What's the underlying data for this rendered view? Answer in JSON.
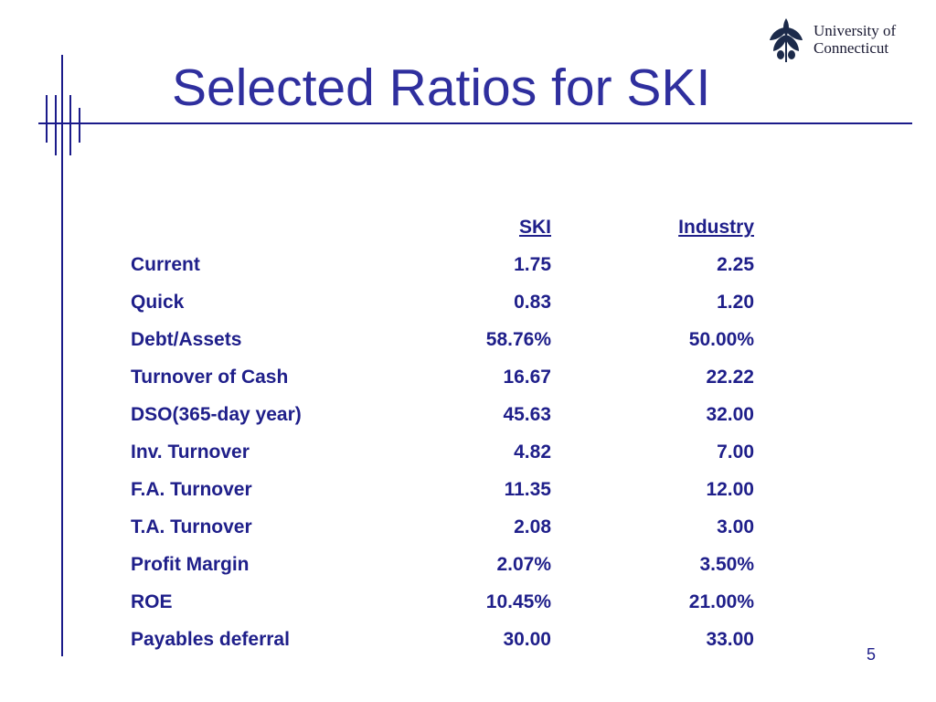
{
  "slide": {
    "title": "Selected Ratios for SKI",
    "page_number": "5",
    "logo": {
      "line1": "University of",
      "line2": "Connecticut"
    }
  },
  "table": {
    "headers": [
      "",
      "SKI",
      "Industry"
    ],
    "rows": [
      {
        "label": "Current",
        "ski": "1.75",
        "industry": "2.25"
      },
      {
        "label": "Quick",
        "ski": "0.83",
        "industry": "1.20"
      },
      {
        "label": "Debt/Assets",
        "ski": "58.76%",
        "industry": "50.00%"
      },
      {
        "label": "Turnover of Cash",
        "ski": "16.67",
        "industry": "22.22"
      },
      {
        "label": "DSO(365-day year)",
        "ski": "45.63",
        "industry": "32.00"
      },
      {
        "label": "Inv. Turnover",
        "ski": "4.82",
        "industry": "7.00"
      },
      {
        "label": "F.A. Turnover",
        "ski": "11.35",
        "industry": "12.00"
      },
      {
        "label": "T.A. Turnover",
        "ski": "2.08",
        "industry": "3.00"
      },
      {
        "label": "Profit Margin",
        "ski": "2.07%",
        "industry": "3.50%"
      },
      {
        "label": "ROE",
        "ski": "10.45%",
        "industry": "21.00%"
      },
      {
        "label": "Payables deferral",
        "ski": "30.00",
        "industry": "33.00"
      }
    ]
  },
  "colors": {
    "title": "#2f2f9e",
    "text": "#1f1f8a",
    "rules": "#1b1b8a"
  }
}
